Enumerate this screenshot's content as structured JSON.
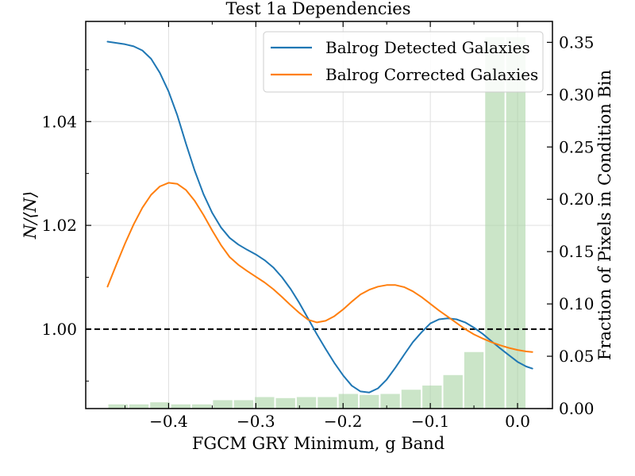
{
  "chart_data": {
    "type": "line",
    "title": "Test 1a Dependencies",
    "xlabel": "FGCM GRY Minimum, g Band",
    "ylabel": "N/⟨N⟩",
    "ylabel_right": "Fraction of Pixels in Condition Bin",
    "xlim": [
      -0.495,
      0.04
    ],
    "ylim": [
      0.9847,
      1.0593
    ],
    "ylim_right": [
      0.0,
      0.37
    ],
    "xticks": [
      -0.4,
      -0.3,
      -0.2,
      -0.1,
      0.0
    ],
    "xtick_labels": [
      "−0.4",
      "−0.3",
      "−0.2",
      "−0.1",
      "0.0"
    ],
    "yticks": [
      1.0,
      1.02,
      1.04
    ],
    "ytick_labels": [
      "1.00",
      "1.02",
      "1.04"
    ],
    "yticks_right": [
      0.0,
      0.05,
      0.1,
      0.15,
      0.2,
      0.25,
      0.3,
      0.35
    ],
    "ytick_labels_right": [
      "0.00",
      "0.05",
      "0.10",
      "0.15",
      "0.20",
      "0.25",
      "0.30",
      "0.35"
    ],
    "grid": true,
    "reference_line": 1.0,
    "legend_position": "top-right",
    "series": [
      {
        "name": "Balrog Detected Galaxies",
        "color": "#1f77b4",
        "x": [
          -0.47,
          -0.45,
          -0.44,
          -0.43,
          -0.42,
          -0.41,
          -0.4,
          -0.39,
          -0.38,
          -0.37,
          -0.36,
          -0.35,
          -0.34,
          -0.33,
          -0.32,
          -0.31,
          -0.3,
          -0.29,
          -0.28,
          -0.27,
          -0.26,
          -0.25,
          -0.24,
          -0.23,
          -0.22,
          -0.21,
          -0.2,
          -0.19,
          -0.18,
          -0.17,
          -0.16,
          -0.15,
          -0.14,
          -0.13,
          -0.12,
          -0.11,
          -0.1,
          -0.09,
          -0.08,
          -0.07,
          -0.06,
          -0.05,
          -0.04,
          -0.03,
          -0.02,
          -0.01,
          0.0,
          0.01,
          0.017
        ],
        "values": [
          1.0554,
          1.0549,
          1.0545,
          1.0537,
          1.0521,
          1.0494,
          1.0458,
          1.0412,
          1.0357,
          1.0305,
          1.026,
          1.0224,
          1.0196,
          1.0176,
          1.0163,
          1.0153,
          1.0144,
          1.0133,
          1.0119,
          1.01,
          1.0077,
          1.005,
          1.002,
          0.999,
          0.9962,
          0.9935,
          0.9911,
          0.9891,
          0.988,
          0.9878,
          0.9886,
          0.9903,
          0.9926,
          0.9951,
          0.9975,
          0.9994,
          1.0011,
          1.0019,
          1.0021,
          1.0019,
          1.0013,
          1.0003,
          0.9991,
          0.9977,
          0.9963,
          0.995,
          0.9937,
          0.9928,
          0.9924
        ]
      },
      {
        "name": "Balrog Corrected Galaxies",
        "color": "#ff7f0e",
        "x": [
          -0.47,
          -0.46,
          -0.45,
          -0.44,
          -0.43,
          -0.42,
          -0.41,
          -0.4,
          -0.39,
          -0.38,
          -0.37,
          -0.36,
          -0.35,
          -0.34,
          -0.33,
          -0.32,
          -0.31,
          -0.3,
          -0.29,
          -0.28,
          -0.27,
          -0.26,
          -0.25,
          -0.24,
          -0.23,
          -0.22,
          -0.21,
          -0.2,
          -0.19,
          -0.18,
          -0.17,
          -0.16,
          -0.15,
          -0.14,
          -0.13,
          -0.12,
          -0.11,
          -0.1,
          -0.09,
          -0.08,
          -0.07,
          -0.06,
          -0.05,
          -0.04,
          -0.03,
          -0.02,
          -0.01,
          0.0,
          0.01,
          0.017
        ],
        "values": [
          1.0082,
          1.0124,
          1.0165,
          1.0202,
          1.0234,
          1.0259,
          1.0275,
          1.0282,
          1.028,
          1.0268,
          1.0247,
          1.022,
          1.019,
          1.0162,
          1.0139,
          1.0124,
          1.0112,
          1.0101,
          1.009,
          1.0077,
          1.0062,
          1.0046,
          1.0031,
          1.0018,
          1.0013,
          1.0016,
          1.0025,
          1.0038,
          1.0053,
          1.0067,
          1.0076,
          1.0082,
          1.0085,
          1.0085,
          1.0081,
          1.0073,
          1.0062,
          1.0049,
          1.0036,
          1.0024,
          1.0012,
          1.0,
          0.999,
          0.9982,
          0.9975,
          0.9969,
          0.9964,
          0.996,
          0.9957,
          0.9956
        ]
      }
    ],
    "histogram": {
      "axis": "right",
      "color": "#a9d4a3",
      "bin_left_edges": [
        -0.47,
        -0.446,
        -0.422,
        -0.398,
        -0.374,
        -0.35,
        -0.326,
        -0.302,
        -0.278,
        -0.254,
        -0.23,
        -0.206,
        -0.182,
        -0.158,
        -0.134,
        -0.11,
        -0.086,
        -0.062,
        -0.038,
        -0.014
      ],
      "bin_width": 0.024,
      "values": [
        0.004,
        0.004,
        0.006,
        0.004,
        0.004,
        0.008,
        0.008,
        0.011,
        0.01,
        0.011,
        0.011,
        0.014,
        0.013,
        0.014,
        0.018,
        0.022,
        0.032,
        0.054,
        0.355,
        0.355
      ]
    }
  }
}
